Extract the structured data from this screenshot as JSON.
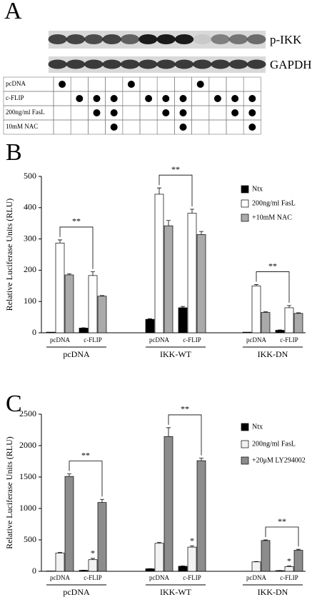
{
  "panel_a": {
    "letter": "A",
    "blot_labels": [
      "p-IKK",
      "GAPDH"
    ],
    "table": {
      "row_labels": [
        "pcDNA",
        "c-FLIP",
        "200ng/ml FasL",
        "10mM NAC"
      ],
      "rows": [
        [
          1,
          0,
          0,
          0,
          1,
          0,
          0,
          0,
          1,
          0,
          0,
          0
        ],
        [
          0,
          1,
          1,
          1,
          0,
          1,
          1,
          1,
          0,
          1,
          1,
          1
        ],
        [
          0,
          0,
          1,
          1,
          0,
          0,
          1,
          1,
          0,
          0,
          1,
          1
        ],
        [
          0,
          0,
          0,
          1,
          0,
          0,
          0,
          1,
          0,
          0,
          0,
          1
        ]
      ]
    }
  },
  "chart_data": [
    {
      "type": "bar",
      "panel": "B",
      "y_label": "Relative Luciferase Units (RLU)",
      "categories": [
        "pcDNA",
        "c-FLIP",
        "pcDNA",
        "c-FLIP",
        "pcDNA",
        "c-FLIP"
      ],
      "groups": [
        "pcDNA",
        "IKK-WT",
        "IKK-DN"
      ],
      "series": [
        {
          "name": "Ntx",
          "color": "#000000",
          "values": [
            2,
            15,
            43,
            80,
            2,
            8
          ],
          "errors": [
            0,
            1,
            2,
            4,
            0,
            1
          ]
        },
        {
          "name": "200ng/ml FasL",
          "color": "#ffffff",
          "values": [
            287,
            183,
            443,
            382,
            150,
            80
          ],
          "errors": [
            10,
            12,
            20,
            13,
            4,
            7
          ]
        },
        {
          "name": "+10mM NAC",
          "color": "#aaaaaa",
          "values": [
            185,
            117,
            342,
            314,
            65,
            62
          ],
          "errors": [
            3,
            2,
            17,
            10,
            2,
            2
          ]
        }
      ],
      "significance": [
        "**",
        "**",
        "**"
      ],
      "ylim": [
        0,
        500
      ],
      "yticks": [
        0,
        100,
        200,
        300,
        400,
        500
      ]
    },
    {
      "type": "bar",
      "panel": "C",
      "y_label": "Relative Luciferase Units (RLU)",
      "categories": [
        "pcDNA",
        "c-FLIP",
        "pcDNA",
        "c-FLIP",
        "pcDNA",
        "c-FLIP"
      ],
      "groups": [
        "pcDNA",
        "IKK-WT",
        "IKK-DN"
      ],
      "series": [
        {
          "name": "Ntx",
          "color": "#000000",
          "values": [
            5,
            15,
            40,
            80,
            2,
            10
          ],
          "errors": [
            0,
            2,
            3,
            5,
            0,
            2
          ]
        },
        {
          "name": "200ng/ml FasL",
          "color": "#f2f2f2",
          "values": [
            290,
            185,
            445,
            385,
            150,
            75
          ],
          "errors": [
            10,
            20,
            15,
            20,
            5,
            10
          ],
          "star_labels": [
            null,
            "*",
            null,
            "*",
            null,
            "*"
          ]
        },
        {
          "name": "+20μM LY294002",
          "color": "#8c8c8c",
          "values": [
            1510,
            1095,
            2145,
            1760,
            490,
            335
          ],
          "errors": [
            40,
            50,
            140,
            40,
            10,
            15
          ]
        }
      ],
      "significance": [
        "**",
        "**",
        "**"
      ],
      "ylim": [
        0,
        2500
      ],
      "yticks": [
        0,
        500,
        1000,
        1500,
        2000,
        2500
      ]
    }
  ]
}
